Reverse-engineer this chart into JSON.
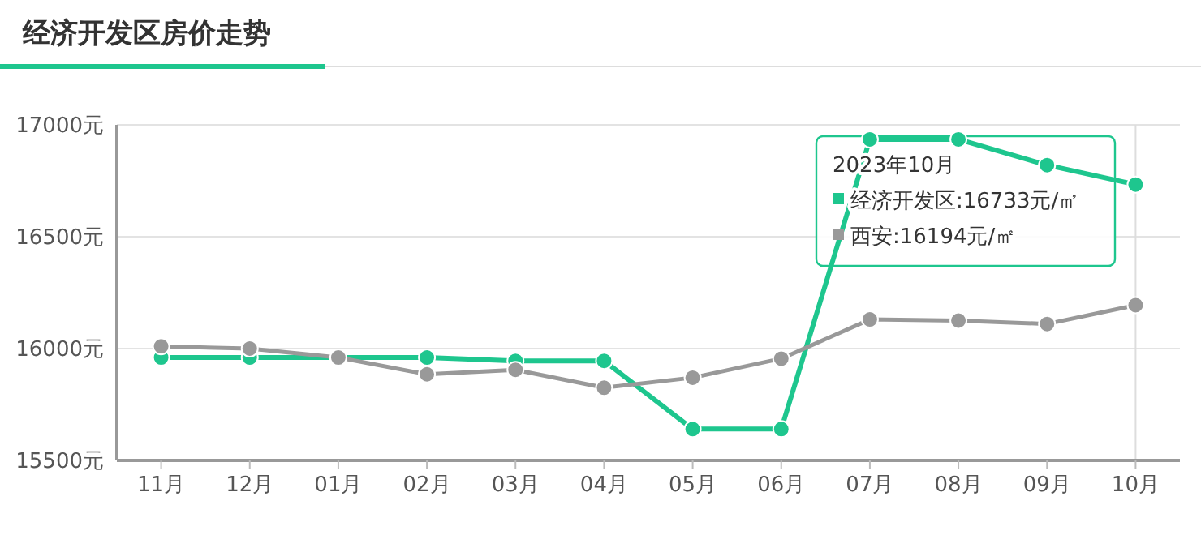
{
  "chart_data": {
    "type": "line",
    "title": "经济开发区房价走势",
    "categories": [
      "11月",
      "12月",
      "01月",
      "02月",
      "03月",
      "04月",
      "05月",
      "06月",
      "07月",
      "08月",
      "09月",
      "10月"
    ],
    "series": [
      {
        "color": "#1ec68e",
        "values": [
          15960,
          15960,
          15960,
          15960,
          15945,
          15945,
          15640,
          15640,
          16935,
          16935,
          16820,
          16733
        ]
      },
      {
        "color": "#999999",
        "values": [
          16010,
          16000,
          15960,
          15885,
          15905,
          15825,
          15870,
          15955,
          16130,
          16125,
          16110,
          16194
        ]
      }
    ],
    "ylim": [
      15500,
      17000
    ],
    "yticks": [
      {
        "value": 15500,
        "label": "15500元"
      },
      {
        "value": 16000,
        "label": "16000元"
      },
      {
        "value": 16500,
        "label": "16500元"
      },
      {
        "value": 17000,
        "label": "17000元"
      }
    ],
    "grid": "y",
    "marker": "circle",
    "line_style": "solid",
    "ref_lines": [
      {
        "axis": "x",
        "value": "10月",
        "color": "#dddddd"
      }
    ],
    "annotations": [
      "2023年10月",
      "经济开发区:16733元/㎡",
      "西安:16194元/㎡"
    ]
  }
}
